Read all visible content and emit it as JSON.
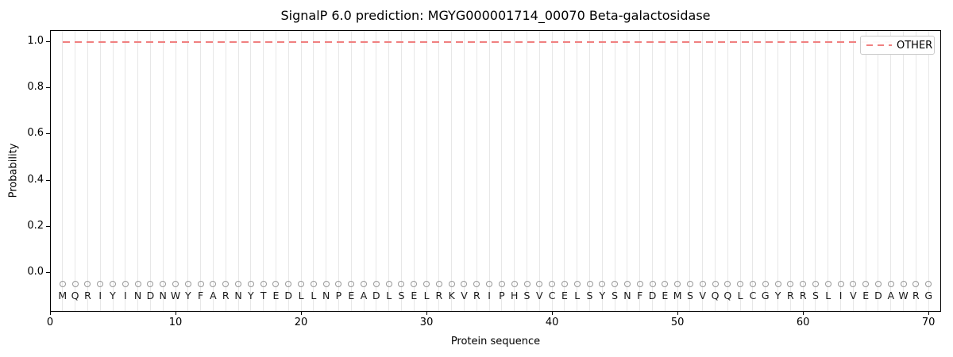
{
  "chart_data": {
    "type": "line",
    "title": "SignalP 6.0 prediction: MGYG000001714_00070 Beta-galactosidase",
    "xlabel": "Protein sequence",
    "ylabel": "Probability",
    "xlim": [
      0,
      71
    ],
    "ylim": [
      -0.17,
      1.05
    ],
    "x_tick_values": [
      0,
      10,
      20,
      30,
      40,
      50,
      60,
      70
    ],
    "x_tick_labels": [
      "0",
      "10",
      "20",
      "30",
      "40",
      "50",
      "60",
      "70"
    ],
    "y_tick_values": [
      0.0,
      0.2,
      0.4,
      0.6,
      0.8,
      1.0
    ],
    "y_tick_labels": [
      "0.0",
      "0.2",
      "0.4",
      "0.6",
      "0.8",
      "1.0"
    ],
    "grid": {
      "axis": "x",
      "per_residue": true,
      "color": "#e7e7e7"
    },
    "legend": {
      "position": "upper right"
    },
    "series": [
      {
        "name": "OTHER",
        "color": "#f08080",
        "linestyle": "dashed",
        "x_start": 1,
        "x_end": 70,
        "constant_y": 1.0
      }
    ],
    "sequence": "MQRIYINDNWYFARNYTEDLLNPEADLSELRKVRIPHSVCELSYSNFDEMSVQQLCGYRRSLIVEDAWRG",
    "sequence_markers": {
      "shape": "circle",
      "y": -0.05,
      "color": "#999999",
      "fill": "none"
    },
    "background": "#ffffff"
  }
}
